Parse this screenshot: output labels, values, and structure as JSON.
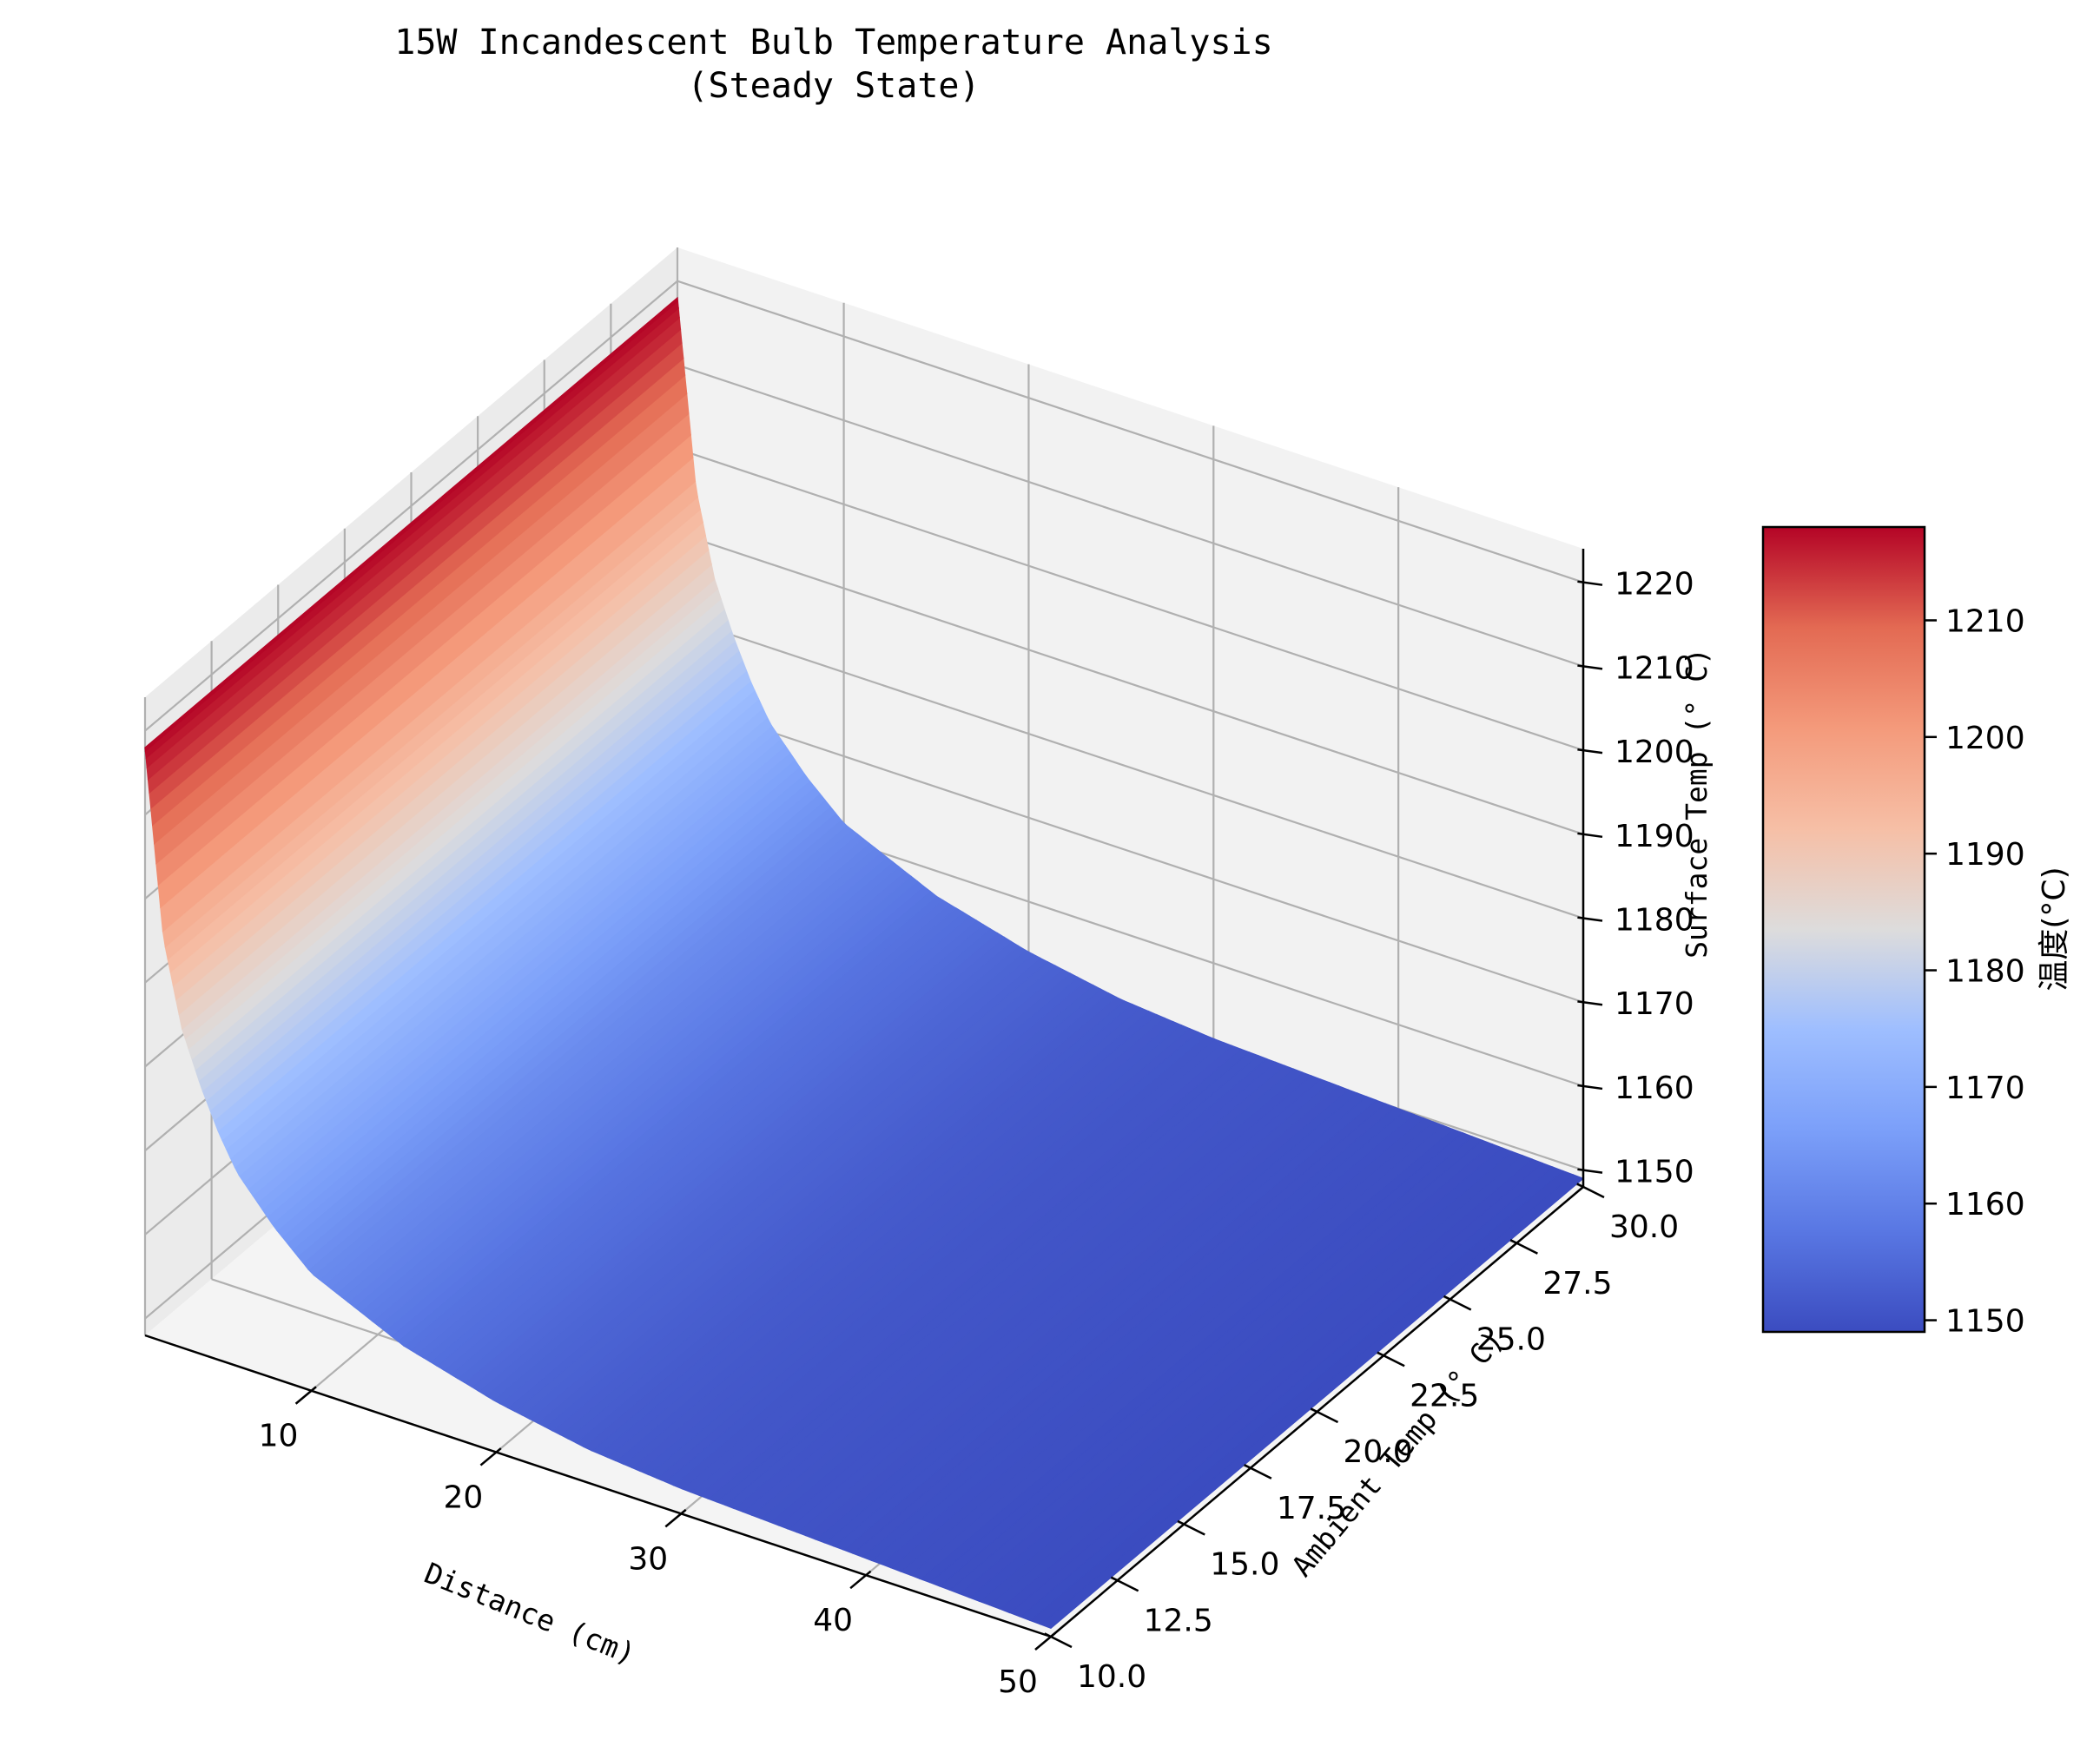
{
  "chart_data": {
    "type": "surface",
    "title": "15W Incandescent Bulb Temperature Analysis",
    "subtitle": "(Steady State)",
    "xlabel": "Distance (cm)",
    "ylabel": "Ambient Temp (° C)",
    "zlabel": "Surface Temp (° C)",
    "colorbar_label": "温度(°C)",
    "colormap": "coolwarm",
    "x_range": [
      1,
      50
    ],
    "y_range": [
      10,
      30
    ],
    "z_range": [
      1148,
      1224
    ],
    "x_ticks": [
      10,
      20,
      30,
      40,
      50
    ],
    "y_ticks": [
      10.0,
      12.5,
      15.0,
      17.5,
      20.0,
      22.5,
      25.0,
      27.5,
      30.0
    ],
    "z_ticks": [
      1150,
      1160,
      1170,
      1180,
      1190,
      1200,
      1210,
      1220
    ],
    "colorbar_ticks": [
      1150,
      1160,
      1170,
      1180,
      1190,
      1200,
      1210
    ],
    "colorbar_range": [
      1149,
      1218
    ],
    "grid": true,
    "surface_profile": {
      "x": [
        1,
        2,
        3,
        4,
        5,
        6,
        8,
        10,
        12,
        15,
        20,
        25,
        30,
        40,
        50
      ],
      "z": [
        1218,
        1196,
        1186,
        1180,
        1175,
        1171,
        1166,
        1162,
        1160,
        1157,
        1154,
        1152,
        1151,
        1150,
        1149
      ]
    }
  }
}
